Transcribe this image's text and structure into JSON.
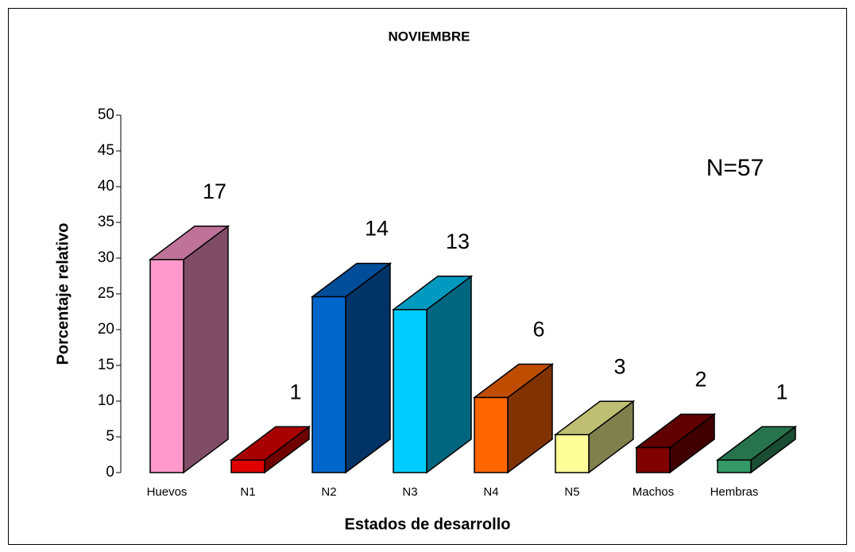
{
  "chart_data": {
    "type": "bar3d",
    "title": "NOVIEMBRE",
    "x_label": "Estados de desarrollo",
    "y_label": "Porcentaje relativo",
    "annotation": "N=57",
    "categories": [
      "Huevos",
      "N1",
      "N2",
      "N3",
      "N4",
      "N5",
      "Machos",
      "Hembras"
    ],
    "values": [
      29.8,
      1.75,
      24.6,
      22.8,
      10.5,
      5.3,
      3.5,
      1.75
    ],
    "counts": [
      17,
      1,
      14,
      13,
      6,
      3,
      2,
      1
    ],
    "colors": [
      "#ff99cc",
      "#e00000",
      "#0066cc",
      "#00ccff",
      "#ff6600",
      "#ffff99",
      "#800000",
      "#339966"
    ],
    "ylim": [
      0,
      50
    ],
    "yticks": [
      0,
      5,
      10,
      15,
      20,
      25,
      30,
      35,
      40,
      45,
      50
    ]
  }
}
